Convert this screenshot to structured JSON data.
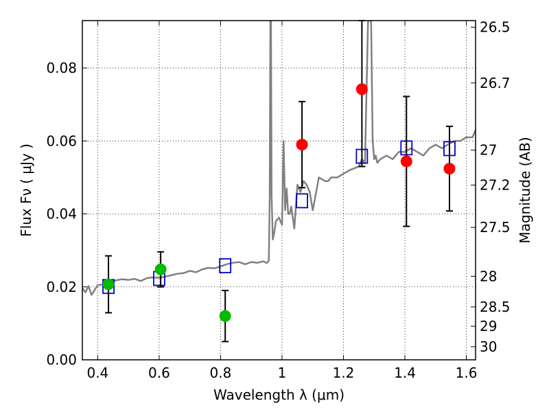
{
  "chart_data": {
    "type": "scatter",
    "xlabel": "Wavelength  λ (μm)",
    "ylabel": "Flux  Fν ( μJy )",
    "y2label": "Magnitude (AB)",
    "xlim": [
      0.35,
      1.63
    ],
    "ylim": [
      0.0,
      0.093
    ],
    "grid": true,
    "x_ticks": [
      0.4,
      0.6,
      0.8,
      1.0,
      1.2,
      1.4,
      1.6
    ],
    "x_tick_labels": [
      "0.4",
      "0.6",
      "0.8",
      "1",
      "1.2",
      "1.4",
      "1.6"
    ],
    "y_ticks": [
      0.0,
      0.02,
      0.04,
      0.06,
      0.08
    ],
    "y_tick_labels": [
      "0.00",
      "0.02",
      "0.04",
      "0.06",
      "0.08"
    ],
    "y2_ticks": [
      {
        "label": "26.5",
        "flux": 0.0912
      },
      {
        "label": "26.7",
        "flux": 0.0759
      },
      {
        "label": "27",
        "flux": 0.0575
      },
      {
        "label": "27.2",
        "flux": 0.0479
      },
      {
        "label": "27.5",
        "flux": 0.0363
      },
      {
        "label": "28",
        "flux": 0.0229
      },
      {
        "label": "28.5",
        "flux": 0.0145
      },
      {
        "label": "29",
        "flux": 0.0092
      },
      {
        "label": "30",
        "flux": 0.0036
      }
    ],
    "series": [
      {
        "type": "line",
        "color": "#808080",
        "x": [
          0.35,
          0.36,
          0.37,
          0.38,
          0.4,
          0.42,
          0.44,
          0.46,
          0.48,
          0.5,
          0.52,
          0.54,
          0.56,
          0.58,
          0.6,
          0.62,
          0.64,
          0.66,
          0.68,
          0.7,
          0.72,
          0.74,
          0.76,
          0.78,
          0.8,
          0.82,
          0.84,
          0.86,
          0.88,
          0.9,
          0.92,
          0.94,
          0.95,
          0.957,
          0.96,
          0.962,
          0.964,
          0.966,
          0.97,
          0.975,
          0.98,
          0.99,
          1.0,
          1.005,
          1.01,
          1.015,
          1.02,
          1.025,
          1.03,
          1.04,
          1.05,
          1.06,
          1.07,
          1.08,
          1.09,
          1.1,
          1.12,
          1.14,
          1.15,
          1.16,
          1.18,
          1.2,
          1.22,
          1.25,
          1.26,
          1.27,
          1.28,
          1.29,
          1.295,
          1.3,
          1.305,
          1.31,
          1.32,
          1.34,
          1.36,
          1.38,
          1.4,
          1.42,
          1.44,
          1.46,
          1.48,
          1.5,
          1.52,
          1.54,
          1.56,
          1.58,
          1.6,
          1.62,
          1.63
        ],
        "y": [
          0.0197,
          0.0185,
          0.0202,
          0.0178,
          0.0205,
          0.0207,
          0.0212,
          0.0218,
          0.0221,
          0.0219,
          0.0222,
          0.0216,
          0.0224,
          0.0226,
          0.0225,
          0.0228,
          0.0232,
          0.0236,
          0.0238,
          0.0244,
          0.024,
          0.0248,
          0.0252,
          0.0251,
          0.0256,
          0.0262,
          0.0266,
          0.0268,
          0.0262,
          0.0268,
          0.0266,
          0.027,
          0.0265,
          0.0272,
          0.045,
          0.093,
          0.093,
          0.045,
          0.033,
          0.035,
          0.038,
          0.039,
          0.037,
          0.06,
          0.041,
          0.047,
          0.04,
          0.04,
          0.042,
          0.036,
          0.048,
          0.046,
          0.049,
          0.048,
          0.046,
          0.041,
          0.05,
          0.049,
          0.049,
          0.05,
          0.05,
          0.051,
          0.052,
          0.053,
          0.055,
          0.054,
          0.093,
          0.093,
          0.06,
          0.055,
          0.056,
          0.054,
          0.055,
          0.056,
          0.055,
          0.057,
          0.057,
          0.058,
          0.057,
          0.056,
          0.058,
          0.059,
          0.058,
          0.059,
          0.06,
          0.06,
          0.061,
          0.061,
          0.063
        ]
      },
      {
        "type": "scatter",
        "marker": "square-open",
        "color": "#0000cc",
        "x": [
          0.435,
          0.6,
          0.815,
          1.065,
          1.26,
          1.405,
          1.545
        ],
        "y": [
          0.0201,
          0.0223,
          0.0258,
          0.0436,
          0.0558,
          0.0581,
          0.0579
        ]
      },
      {
        "type": "scatter",
        "marker": "circle",
        "color": "#00bb00",
        "x": [
          0.435,
          0.605,
          0.815
        ],
        "y": [
          0.0207,
          0.0248,
          0.012
        ],
        "yerr": [
          0.0078,
          0.0048,
          0.007
        ]
      },
      {
        "type": "scatter",
        "marker": "circle",
        "color": "#ff0000",
        "x": [
          1.065,
          1.26,
          1.405,
          1.545
        ],
        "y": [
          0.059,
          0.0742,
          0.0544,
          0.0524
        ],
        "yerr": [
          0.0118,
          0.0212,
          0.0178,
          0.0116
        ]
      }
    ]
  }
}
